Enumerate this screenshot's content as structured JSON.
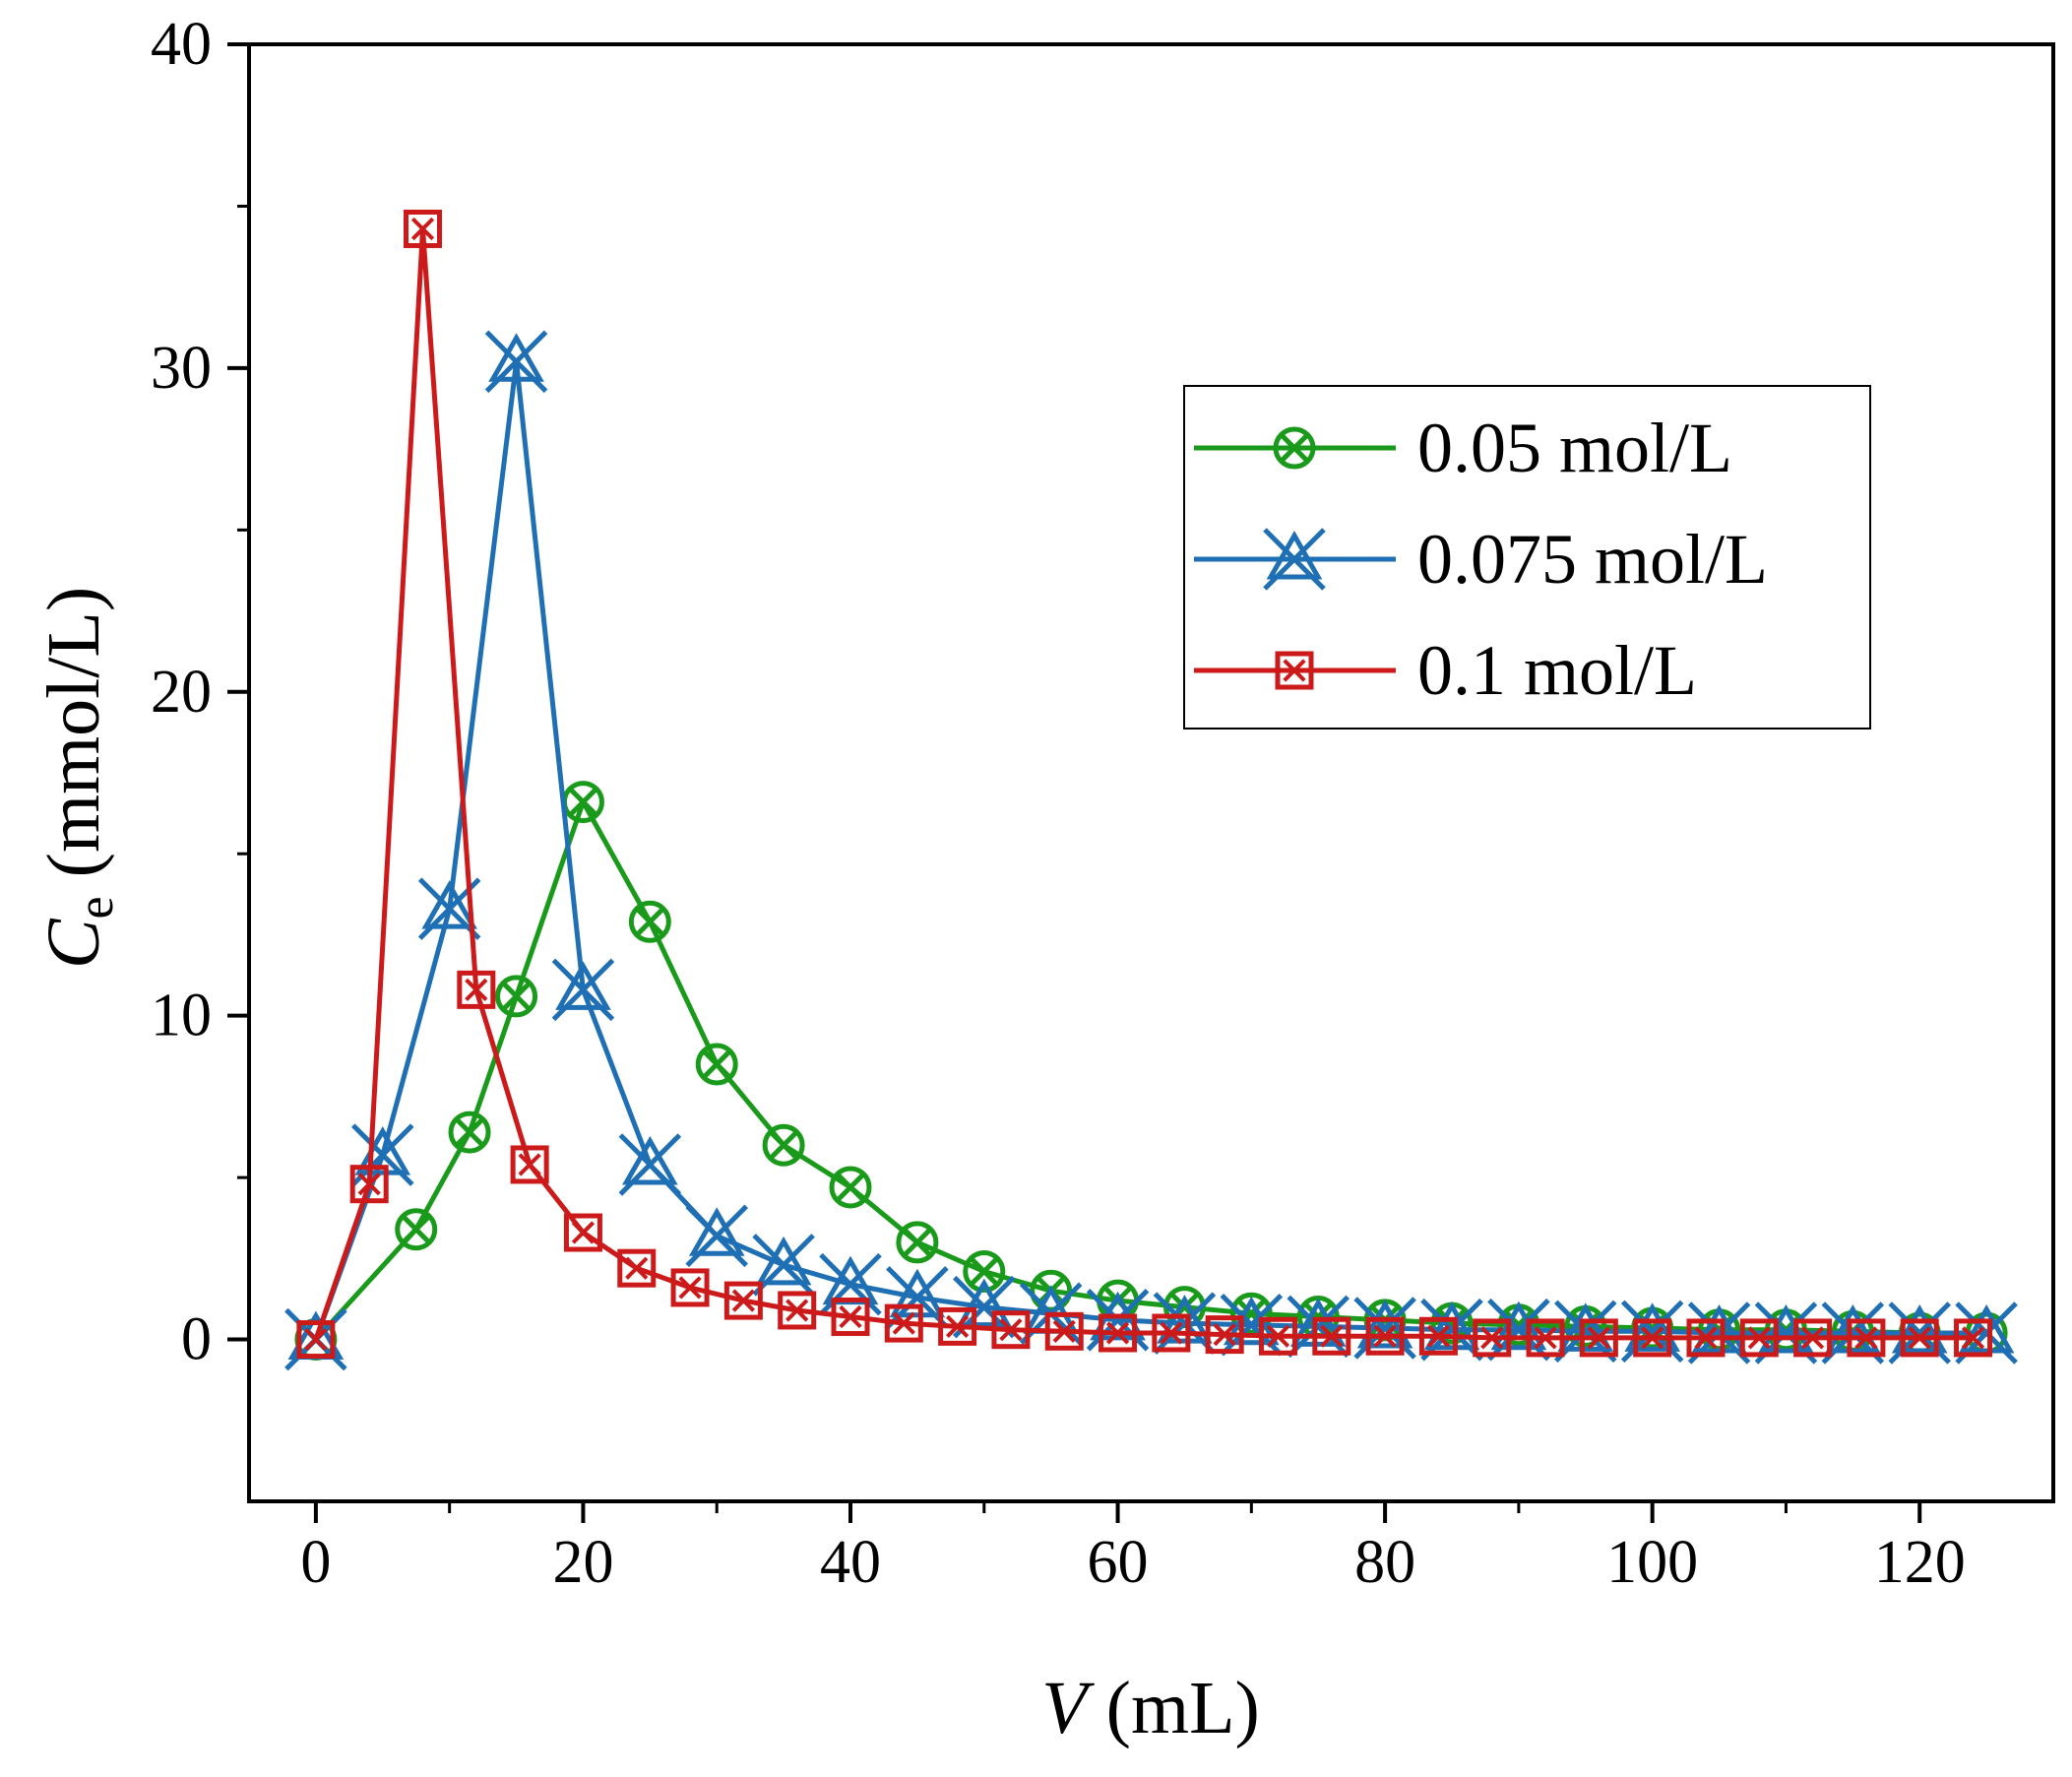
{
  "chart_data": {
    "type": "line",
    "title": "",
    "xlabel": {
      "var": "V",
      "unit": " (mL)"
    },
    "ylabel": {
      "var": "C",
      "sub": "e",
      "unit": " (mmol/L)"
    },
    "xlim": [
      -5,
      130
    ],
    "ylim": [
      -5,
      40
    ],
    "xticks": [
      0,
      20,
      40,
      60,
      80,
      100,
      120
    ],
    "yticks": [
      0,
      10,
      20,
      30,
      40
    ],
    "grid": false,
    "legend_position": "top-right",
    "series": [
      {
        "name": "0.05 mol/L",
        "color": "#1a9a1a",
        "marker": "circle-x",
        "x": [
          0,
          7.5,
          11.5,
          15,
          20,
          25,
          30,
          35,
          40,
          45,
          50,
          55,
          60,
          65,
          70,
          75,
          80,
          85,
          90,
          95,
          100,
          105,
          110,
          115,
          120,
          125
        ],
        "y": [
          0,
          3.4,
          6.4,
          10.6,
          16.6,
          12.9,
          8.5,
          6.0,
          4.7,
          3.0,
          2.1,
          1.5,
          1.2,
          1.0,
          0.8,
          0.7,
          0.6,
          0.5,
          0.45,
          0.4,
          0.35,
          0.3,
          0.3,
          0.25,
          0.2,
          0.2
        ]
      },
      {
        "name": "0.075 mol/L",
        "color": "#1f6fb5",
        "marker": "x-triangle",
        "x": [
          0,
          5,
          10,
          15,
          20,
          25,
          30,
          35,
          40,
          45,
          50,
          55,
          60,
          65,
          70,
          75,
          80,
          85,
          90,
          95,
          100,
          105,
          110,
          115,
          120,
          125
        ],
        "y": [
          0,
          5.7,
          13.3,
          30.2,
          10.8,
          5.4,
          3.2,
          2.3,
          1.7,
          1.3,
          1.0,
          0.8,
          0.6,
          0.5,
          0.45,
          0.4,
          0.35,
          0.3,
          0.3,
          0.25,
          0.25,
          0.2,
          0.2,
          0.2,
          0.2,
          0.2
        ]
      },
      {
        "name": "0.1 mol/L",
        "color": "#cc1a1a",
        "marker": "boxed-x",
        "x": [
          0,
          4,
          8,
          12,
          16,
          20,
          24,
          28,
          32,
          36,
          40,
          44,
          48,
          52,
          56,
          60,
          64,
          68,
          72,
          76,
          80,
          84,
          88,
          92,
          96,
          100,
          104,
          108,
          112,
          116,
          120,
          124
        ],
        "y": [
          0,
          4.8,
          34.3,
          10.8,
          5.4,
          3.3,
          2.2,
          1.6,
          1.2,
          0.9,
          0.7,
          0.5,
          0.4,
          0.3,
          0.25,
          0.2,
          0.2,
          0.15,
          0.1,
          0.1,
          0.1,
          0.1,
          0.05,
          0.05,
          0.05,
          0.05,
          0.05,
          0.05,
          0.05,
          0.05,
          0.05,
          0.05
        ]
      }
    ]
  }
}
